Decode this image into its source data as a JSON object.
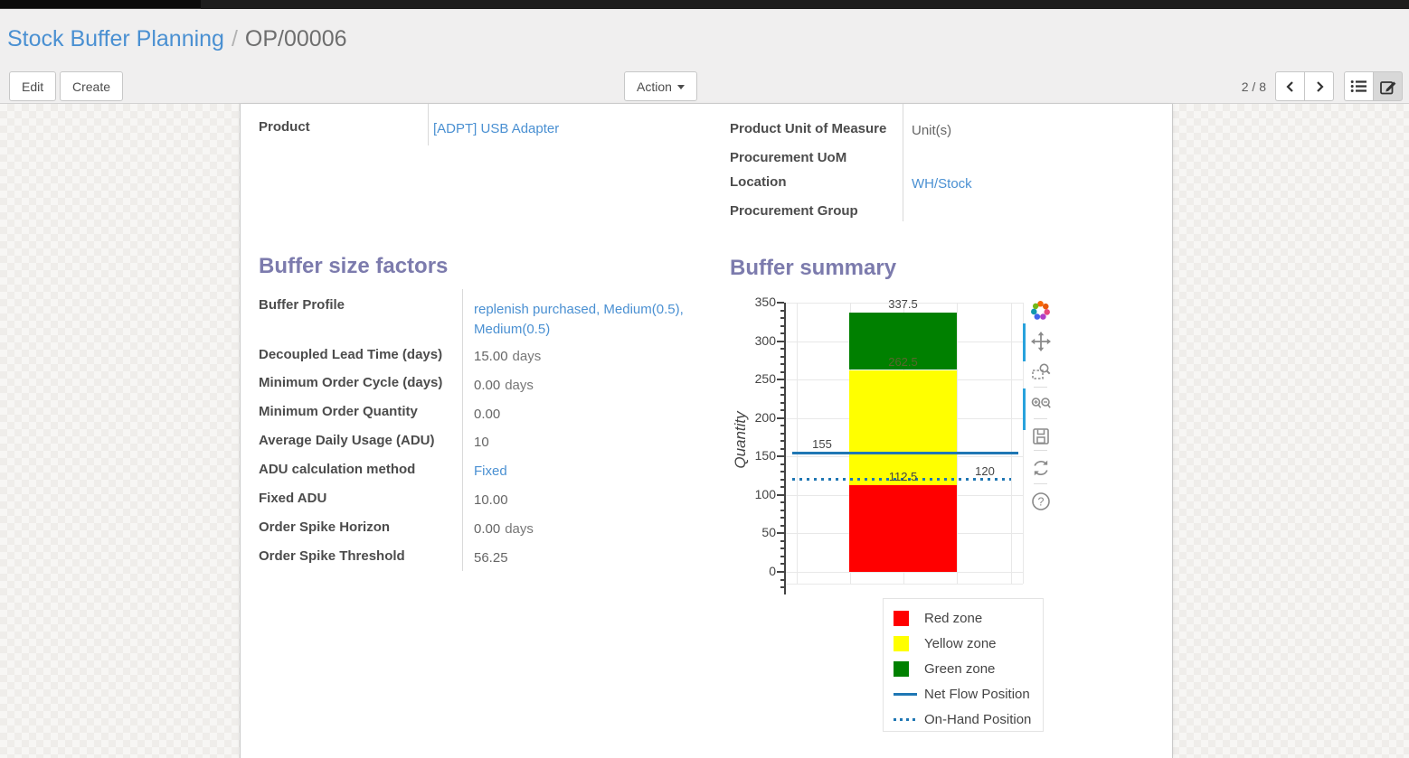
{
  "breadcrumb": {
    "parent": "Stock Buffer Planning",
    "separator": "/",
    "current": "OP/00006"
  },
  "toolbar": {
    "edit_label": "Edit",
    "create_label": "Create",
    "action_label": "Action",
    "pager": "2 / 8"
  },
  "form": {
    "product": {
      "label": "Product",
      "value": "[ADPT] USB Adapter"
    },
    "right_fields": [
      {
        "label": "Product Unit of Measure",
        "value": "Unit(s)"
      },
      {
        "label": "Procurement UoM",
        "value": ""
      },
      {
        "label": "Location",
        "value": "WH/Stock"
      },
      {
        "label": "Procurement Group",
        "value": ""
      }
    ],
    "buffer_section_title": "Buffer size factors",
    "summary_section_title": "Buffer summary",
    "buffer_fields": [
      {
        "label": "Buffer Profile",
        "value": "replenish purchased, Medium(0.5), Medium(0.5)"
      },
      {
        "label": "Decoupled Lead Time (days)",
        "value": "15.00",
        "suffix": "days"
      },
      {
        "label": "Minimum Order Cycle (days)",
        "value": "0.00",
        "suffix": "days"
      },
      {
        "label": "Minimum Order Quantity",
        "value": "0.00"
      },
      {
        "label": "Average Daily Usage (ADU)",
        "value": "10"
      },
      {
        "label": "ADU calculation method",
        "value": "Fixed"
      },
      {
        "label": "Fixed ADU",
        "value": "10.00"
      },
      {
        "label": "Order Spike Horizon",
        "value": "0.00",
        "suffix": "days"
      },
      {
        "label": "Order Spike Threshold",
        "value": "56.25"
      }
    ]
  },
  "chart_data": {
    "type": "bar",
    "title": "",
    "ylabel": "Quantity",
    "ylim": [
      0,
      350
    ],
    "ytick_step": 50,
    "minor_tick_step": 10,
    "grid": true,
    "categories": [
      ""
    ],
    "zones": [
      {
        "name": "Red zone",
        "from": 0,
        "to": 112.5,
        "color": "#ff0000"
      },
      {
        "name": "Yellow zone",
        "from": 112.5,
        "to": 262.5,
        "color": "#ffff00"
      },
      {
        "name": "Green zone",
        "from": 262.5,
        "to": 337.5,
        "color": "#008000"
      }
    ],
    "lines": [
      {
        "name": "Net Flow Position",
        "value": 155,
        "style": "solid",
        "color": "#1f77b4"
      },
      {
        "name": "On-Hand Position",
        "value": 120,
        "style": "dotted",
        "color": "#1f77b4"
      }
    ],
    "annotations": [
      {
        "text": "337.5",
        "value": 337.5,
        "align": "center",
        "color": "#444444"
      },
      {
        "text": "262.5",
        "value": 262.5,
        "align": "center",
        "color": "#5a662d"
      },
      {
        "text": "112.5",
        "value": 112.5,
        "align": "center",
        "color": "#444444"
      },
      {
        "text": "155",
        "value": 155,
        "align": "left",
        "color": "#444444"
      },
      {
        "text": "120",
        "value": 120,
        "align": "right",
        "color": "#444444"
      }
    ],
    "legend": [
      {
        "label": "Red zone",
        "type": "swatch",
        "color": "#ff0000"
      },
      {
        "label": "Yellow zone",
        "type": "swatch",
        "color": "#ffff00"
      },
      {
        "label": "Green zone",
        "type": "swatch",
        "color": "#008000"
      },
      {
        "label": "Net Flow Position",
        "type": "line",
        "color": "#1f77b4"
      },
      {
        "label": "On-Hand Position",
        "type": "dotted",
        "color": "#1f77b4"
      }
    ],
    "legend_position": "bottom-right"
  },
  "modebar_icons": [
    "plotly-logo",
    "pan",
    "box-zoom",
    "zoom-in-out",
    "save",
    "reset-axes",
    "help"
  ]
}
